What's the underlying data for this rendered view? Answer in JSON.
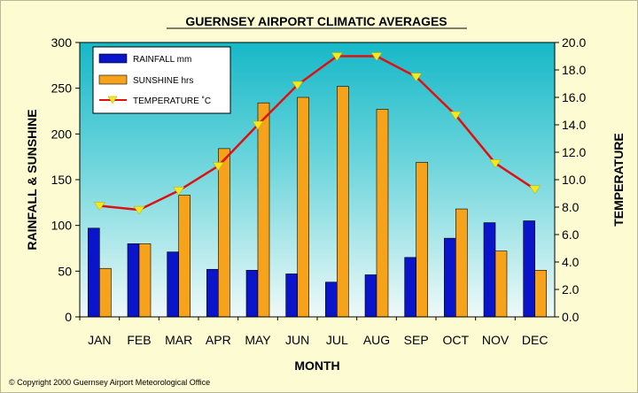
{
  "chart_data": {
    "type": "bar",
    "title": "GUERNSEY AIRPORT CLIMATIC AVERAGES",
    "xlabel": "MONTH",
    "ylabel": "RAINFALL & SUNSHINE",
    "y2label": "TEMPERATURE",
    "categories": [
      "JAN",
      "FEB",
      "MAR",
      "APR",
      "MAY",
      "JUN",
      "JUL",
      "AUG",
      "SEP",
      "OCT",
      "NOV",
      "DEC"
    ],
    "ylim": [
      0,
      300
    ],
    "y2lim": [
      0,
      20
    ],
    "yticks": [
      "0",
      "50",
      "100",
      "150",
      "200",
      "250",
      "300"
    ],
    "y2ticks": [
      "0.0",
      "2.0",
      "4.0",
      "6.0",
      "8.0",
      "10.0",
      "12.0",
      "14.0",
      "16.0",
      "18.0",
      "20.0"
    ],
    "series": [
      {
        "name": "RAINFALL mm",
        "type": "bar",
        "axis": "left",
        "color": "#0a14c8",
        "values": [
          97,
          80,
          71,
          52,
          51,
          47,
          38,
          46,
          65,
          86,
          103,
          105
        ]
      },
      {
        "name": "SUNSHINE hrs",
        "type": "bar",
        "axis": "left",
        "color": "#f7a21b",
        "values": [
          53,
          80,
          133,
          184,
          234,
          240,
          252,
          227,
          169,
          118,
          72,
          51
        ]
      },
      {
        "name": "TEMPERATURE ˚C",
        "type": "line",
        "axis": "right",
        "color": "#e01010",
        "marker_color": "#f2ea1e",
        "values": [
          8.1,
          7.8,
          9.2,
          11.0,
          14.0,
          16.9,
          19.0,
          19.0,
          17.5,
          14.7,
          11.2,
          9.3
        ]
      }
    ],
    "legend_position": "top-left",
    "grid": false
  },
  "copyright": "© Copyright 2000 Guernsey Airport Meteorological Office"
}
